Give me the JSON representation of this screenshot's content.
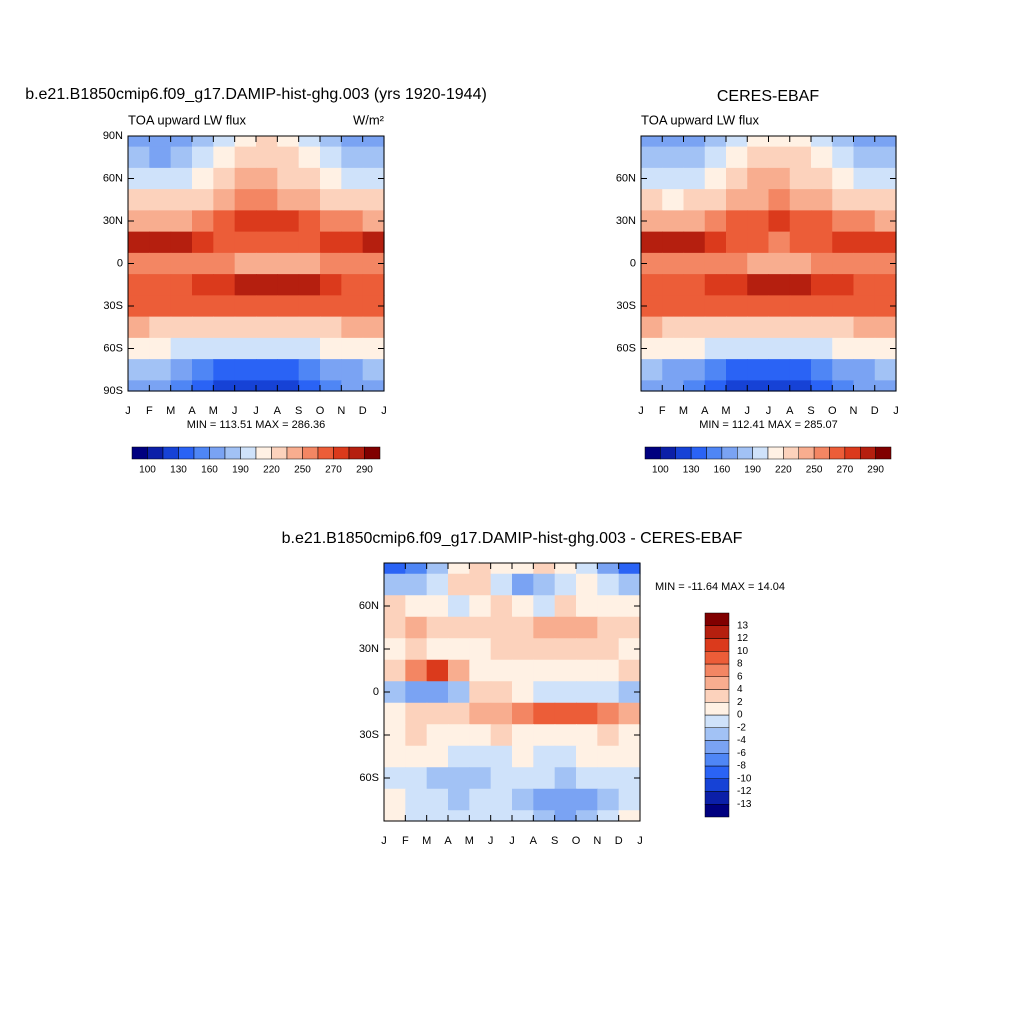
{
  "chart_data": [
    {
      "type": "contour",
      "title": "b.e21.B1850cmip6.f09_g17.DAMIP-hist-ghg.003 (yrs 1920-1944)",
      "subtitle": "TOA upward LW flux",
      "units": "W/m²",
      "stats": "MIN = 113.51 MAX = 286.36",
      "x_labels": [
        "J",
        "F",
        "M",
        "A",
        "M",
        "J",
        "J",
        "A",
        "S",
        "O",
        "N",
        "D",
        "J"
      ],
      "lats": [
        90,
        75,
        60,
        45,
        30,
        15,
        0,
        -15,
        -30,
        -45,
        -60,
        -75,
        -90
      ],
      "z": [
        [
          165,
          160,
          165,
          180,
          200,
          215,
          220,
          210,
          195,
          180,
          170,
          165
        ],
        [
          175,
          172,
          178,
          195,
          215,
          228,
          232,
          222,
          205,
          190,
          180,
          176
        ],
        [
          198,
          195,
          200,
          212,
          228,
          238,
          240,
          232,
          220,
          208,
          200,
          198
        ],
        [
          222,
          220,
          223,
          232,
          242,
          250,
          252,
          248,
          240,
          230,
          224,
          222
        ],
        [
          248,
          246,
          248,
          255,
          262,
          270,
          272,
          270,
          265,
          258,
          252,
          249
        ],
        [
          282,
          283,
          282,
          276,
          268,
          262,
          260,
          262,
          266,
          272,
          278,
          281
        ],
        [
          252,
          250,
          255,
          258,
          252,
          245,
          242,
          244,
          248,
          252,
          254,
          252
        ],
        [
          262,
          265,
          268,
          272,
          278,
          283,
          285,
          284,
          280,
          272,
          266,
          262
        ],
        [
          266,
          267,
          265,
          262,
          262,
          263,
          265,
          266,
          266,
          266,
          266,
          266
        ],
        [
          236,
          234,
          232,
          230,
          228,
          228,
          229,
          230,
          232,
          234,
          236,
          236
        ],
        [
          210,
          208,
          204,
          198,
          195,
          193,
          193,
          195,
          200,
          205,
          208,
          210
        ],
        [
          178,
          175,
          165,
          152,
          142,
          138,
          136,
          138,
          148,
          162,
          172,
          177
        ],
        [
          170,
          168,
          155,
          135,
          122,
          118,
          116,
          118,
          132,
          152,
          165,
          170
        ]
      ],
      "ylim": [
        -90,
        90
      ],
      "yticks": [
        {
          "value": 90,
          "label": "90N"
        },
        {
          "value": 60,
          "label": "60N"
        },
        {
          "value": 30,
          "label": "30N"
        },
        0,
        {
          "value": -30,
          "label": "30S"
        },
        {
          "value": -60,
          "label": "60S"
        },
        {
          "value": -90,
          "label": "90S"
        }
      ],
      "colorbar": {
        "orientation": "horizontal",
        "label_every": 2,
        "levels": [
          100,
          115,
          130,
          145,
          160,
          175,
          190,
          205,
          220,
          235,
          250,
          260,
          270,
          280,
          290
        ],
        "colors": [
          "#00007f",
          "#0b1fa8",
          "#1642d6",
          "#2a63f5",
          "#4f86f5",
          "#7aa3f3",
          "#a2c2f5",
          "#cfe2fa",
          "#fff1e4",
          "#fcd2bc",
          "#f8ad8f",
          "#f38663",
          "#ec5d38",
          "#db3a1c",
          "#b51f0f",
          "#800000"
        ]
      }
    },
    {
      "type": "contour",
      "title": "CERES-EBAF",
      "subtitle": "TOA upward LW flux",
      "stats": "MIN = 112.41 MAX = 285.07",
      "x_labels": [
        "J",
        "F",
        "M",
        "A",
        "M",
        "J",
        "J",
        "A",
        "S",
        "O",
        "N",
        "D",
        "J"
      ],
      "lats": [
        90,
        75,
        60,
        45,
        30,
        15,
        0,
        -15,
        -30,
        -45,
        -60,
        -75,
        -90
      ],
      "z": [
        [
          170,
          168,
          170,
          182,
          200,
          214,
          218,
          210,
          196,
          182,
          174,
          170
        ],
        [
          178,
          176,
          180,
          194,
          212,
          226,
          230,
          222,
          206,
          192,
          183,
          179
        ],
        [
          198,
          196,
          199,
          210,
          226,
          236,
          238,
          232,
          220,
          208,
          201,
          199
        ],
        [
          220,
          219,
          221,
          230,
          240,
          248,
          250,
          247,
          240,
          230,
          223,
          221
        ],
        [
          247,
          246,
          247,
          253,
          260,
          268,
          270,
          268,
          264,
          257,
          251,
          248
        ],
        [
          280,
          281,
          280,
          274,
          266,
          261,
          259,
          261,
          264,
          270,
          276,
          279
        ],
        [
          255,
          253,
          256,
          258,
          254,
          248,
          246,
          247,
          250,
          254,
          256,
          255
        ],
        [
          262,
          264,
          268,
          272,
          277,
          282,
          284,
          283,
          279,
          272,
          266,
          262
        ],
        [
          265,
          266,
          264,
          262,
          261,
          262,
          264,
          265,
          266,
          266,
          266,
          266
        ],
        [
          236,
          234,
          232,
          230,
          228,
          228,
          229,
          230,
          232,
          234,
          236,
          236
        ],
        [
          210,
          208,
          205,
          200,
          196,
          194,
          194,
          196,
          201,
          206,
          209,
          210
        ],
        [
          178,
          174,
          165,
          152,
          141,
          137,
          135,
          137,
          147,
          161,
          171,
          177
        ],
        [
          168,
          166,
          154,
          134,
          121,
          117,
          115,
          117,
          131,
          151,
          164,
          168
        ]
      ],
      "ylim": [
        -90,
        90
      ],
      "yticks": [
        {
          "value": 60,
          "label": "60N"
        },
        {
          "value": 30,
          "label": "30N"
        },
        0,
        {
          "value": -30,
          "label": "30S"
        },
        {
          "value": -60,
          "label": "60S"
        }
      ],
      "colorbar": {
        "orientation": "horizontal",
        "label_every": 2,
        "levels": [
          100,
          115,
          130,
          145,
          160,
          175,
          190,
          205,
          220,
          235,
          250,
          260,
          270,
          280,
          290
        ],
        "colors": [
          "#00007f",
          "#0b1fa8",
          "#1642d6",
          "#2a63f5",
          "#4f86f5",
          "#7aa3f3",
          "#a2c2f5",
          "#cfe2fa",
          "#fff1e4",
          "#fcd2bc",
          "#f8ad8f",
          "#f38663",
          "#ec5d38",
          "#db3a1c",
          "#b51f0f",
          "#800000"
        ]
      }
    },
    {
      "type": "contour",
      "title": "b.e21.B1850cmip6.f09_g17.DAMIP-hist-ghg.003 - CERES-EBAF",
      "stats": "MIN = -11.64 MAX =  14.04",
      "x_labels": [
        "J",
        "F",
        "M",
        "A",
        "M",
        "J",
        "J",
        "A",
        "S",
        "O",
        "N",
        "D",
        "J"
      ],
      "lats": [
        90,
        75,
        60,
        45,
        30,
        15,
        0,
        -15,
        -30,
        -45,
        -60,
        -75,
        -90
      ],
      "z": [
        [
          -10,
          -8,
          -4,
          1,
          2,
          1,
          1,
          2,
          0,
          -2,
          -6,
          -10
        ],
        [
          -4,
          -3,
          -1,
          2,
          2,
          -2,
          -5,
          -4,
          -1,
          0,
          -2,
          -4
        ],
        [
          2,
          1,
          0,
          -1,
          1,
          2,
          0,
          -1,
          2,
          1,
          0,
          1
        ],
        [
          3,
          4,
          3,
          2,
          2,
          3,
          3,
          4,
          5,
          4,
          3,
          3
        ],
        [
          1,
          2,
          1,
          0,
          1,
          2,
          3,
          3,
          3,
          2,
          2,
          1
        ],
        [
          3,
          6,
          10,
          4,
          0,
          1,
          1,
          0,
          0,
          1,
          1,
          2
        ],
        [
          -4,
          -5,
          -6,
          -4,
          2,
          2,
          0,
          -1,
          -2,
          -1,
          -2,
          -3
        ],
        [
          1,
          2,
          3,
          2,
          4,
          5,
          6,
          8,
          9,
          8,
          7,
          5
        ],
        [
          1,
          2,
          1,
          0,
          1,
          2,
          1,
          1,
          0,
          1,
          2,
          1
        ],
        [
          0,
          1,
          0,
          -1,
          -2,
          -1,
          0,
          -1,
          -1,
          0,
          1,
          1
        ],
        [
          -1,
          -2,
          -3,
          -4,
          -3,
          -2,
          -1,
          -2,
          -3,
          -2,
          -1,
          -1
        ],
        [
          0,
          -1,
          -2,
          -3,
          -2,
          -1,
          -3,
          -5,
          -6,
          -5,
          -3,
          -1
        ],
        [
          0,
          -1,
          -2,
          -2,
          -1,
          -1,
          -2,
          -4,
          -5,
          -4,
          -2,
          0
        ]
      ],
      "ylim": [
        -90,
        90
      ],
      "yticks": [
        {
          "value": 60,
          "label": "60N"
        },
        {
          "value": 30,
          "label": "30N"
        },
        0,
        {
          "value": -30,
          "label": "30S"
        },
        {
          "value": -60,
          "label": "60S"
        }
      ],
      "colorbar": {
        "orientation": "vertical",
        "label_every": 1,
        "levels": [
          -13,
          -12,
          -10,
          -8,
          -6,
          -4,
          -2,
          0,
          2,
          4,
          6,
          8,
          10,
          12,
          13
        ],
        "colors": [
          "#00007f",
          "#0b1fa8",
          "#1642d6",
          "#2a63f5",
          "#4f86f5",
          "#7aa3f3",
          "#a2c2f5",
          "#cfe2fa",
          "#fff1e4",
          "#fcd2bc",
          "#f8ad8f",
          "#f38663",
          "#ec5d38",
          "#db3a1c",
          "#b51f0f",
          "#800000"
        ]
      }
    }
  ]
}
